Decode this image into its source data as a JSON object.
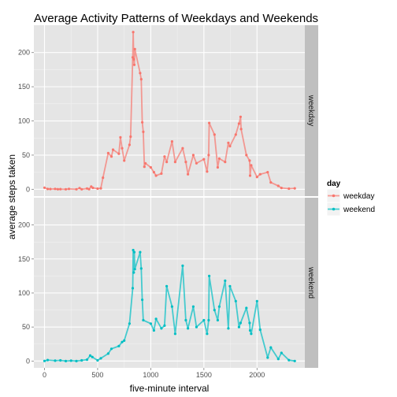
{
  "chart_data": {
    "type": "line",
    "title": "Average Activity Patterns of Weekdays and Weekends",
    "xlabel": "five-minute interval",
    "ylabel": "average steps taken",
    "xlim": [
      -100,
      2450
    ],
    "ylim": [
      -10,
      240
    ],
    "x_ticks": [
      0,
      500,
      1000,
      1500,
      2000
    ],
    "y_ticks": [
      0,
      50,
      100,
      150,
      200
    ],
    "grid": true,
    "legend_position": "right",
    "legend": {
      "title": "day",
      "entries": [
        {
          "name": "weekday",
          "color": "#f8766d"
        },
        {
          "name": "weekend",
          "color": "#00bfc4"
        }
      ]
    },
    "series": [
      {
        "name": "weekday",
        "panel": "weekday",
        "color": "#f8766d",
        "points": [
          [
            0,
            2.3
          ],
          [
            30,
            0.5
          ],
          [
            55,
            0.4
          ],
          [
            100,
            0.6
          ],
          [
            125,
            0.1
          ],
          [
            150,
            0.2
          ],
          [
            200,
            0
          ],
          [
            230,
            0.6
          ],
          [
            300,
            0
          ],
          [
            330,
            1.8
          ],
          [
            350,
            0
          ],
          [
            400,
            1.2
          ],
          [
            420,
            0.3
          ],
          [
            440,
            3.9
          ],
          [
            455,
            2.1
          ],
          [
            500,
            0.9
          ],
          [
            530,
            1.4
          ],
          [
            550,
            17
          ],
          [
            600,
            53
          ],
          [
            630,
            48
          ],
          [
            645,
            58
          ],
          [
            700,
            52
          ],
          [
            715,
            76
          ],
          [
            730,
            60
          ],
          [
            750,
            42
          ],
          [
            800,
            65
          ],
          [
            810,
            77
          ],
          [
            830,
            193
          ],
          [
            835,
            230
          ],
          [
            840,
            190
          ],
          [
            845,
            182
          ],
          [
            850,
            205
          ],
          [
            900,
            170
          ],
          [
            910,
            161
          ],
          [
            920,
            98
          ],
          [
            930,
            84
          ],
          [
            940,
            33
          ],
          [
            950,
            38
          ],
          [
            1000,
            32
          ],
          [
            1030,
            25
          ],
          [
            1050,
            20
          ],
          [
            1100,
            23
          ],
          [
            1130,
            48
          ],
          [
            1150,
            40
          ],
          [
            1200,
            70
          ],
          [
            1230,
            40
          ],
          [
            1300,
            60
          ],
          [
            1330,
            40
          ],
          [
            1350,
            22
          ],
          [
            1400,
            50
          ],
          [
            1430,
            38
          ],
          [
            1500,
            44
          ],
          [
            1530,
            26
          ],
          [
            1545,
            50
          ],
          [
            1550,
            97
          ],
          [
            1600,
            80
          ],
          [
            1630,
            32
          ],
          [
            1645,
            45
          ],
          [
            1700,
            40
          ],
          [
            1730,
            68
          ],
          [
            1745,
            63
          ],
          [
            1800,
            80
          ],
          [
            1830,
            96
          ],
          [
            1845,
            106
          ],
          [
            1850,
            88
          ],
          [
            1900,
            50
          ],
          [
            1930,
            42
          ],
          [
            1935,
            20
          ],
          [
            1945,
            35
          ],
          [
            2000,
            18
          ],
          [
            2030,
            22
          ],
          [
            2100,
            25
          ],
          [
            2130,
            10
          ],
          [
            2200,
            5
          ],
          [
            2230,
            2
          ],
          [
            2300,
            1
          ],
          [
            2355,
            1.4
          ]
        ]
      },
      {
        "name": "weekend",
        "panel": "weekend",
        "color": "#00bfc4",
        "points": [
          [
            0,
            0.2
          ],
          [
            30,
            1.5
          ],
          [
            100,
            0.5
          ],
          [
            150,
            1
          ],
          [
            200,
            0
          ],
          [
            250,
            0.5
          ],
          [
            300,
            0
          ],
          [
            350,
            1
          ],
          [
            400,
            2
          ],
          [
            430,
            8
          ],
          [
            450,
            6
          ],
          [
            500,
            1
          ],
          [
            530,
            4
          ],
          [
            600,
            11
          ],
          [
            630,
            18
          ],
          [
            700,
            22
          ],
          [
            730,
            28
          ],
          [
            750,
            30
          ],
          [
            800,
            55
          ],
          [
            830,
            107
          ],
          [
            835,
            163
          ],
          [
            840,
            130
          ],
          [
            845,
            160
          ],
          [
            850,
            135
          ],
          [
            900,
            160
          ],
          [
            910,
            136
          ],
          [
            920,
            90
          ],
          [
            930,
            60
          ],
          [
            1000,
            55
          ],
          [
            1030,
            45
          ],
          [
            1050,
            62
          ],
          [
            1100,
            48
          ],
          [
            1130,
            52
          ],
          [
            1150,
            110
          ],
          [
            1200,
            80
          ],
          [
            1230,
            40
          ],
          [
            1300,
            140
          ],
          [
            1330,
            60
          ],
          [
            1350,
            48
          ],
          [
            1400,
            80
          ],
          [
            1430,
            50
          ],
          [
            1500,
            60
          ],
          [
            1530,
            40
          ],
          [
            1545,
            60
          ],
          [
            1550,
            125
          ],
          [
            1600,
            75
          ],
          [
            1630,
            60
          ],
          [
            1645,
            80
          ],
          [
            1700,
            118
          ],
          [
            1730,
            48
          ],
          [
            1745,
            110
          ],
          [
            1800,
            88
          ],
          [
            1830,
            50
          ],
          [
            1845,
            56
          ],
          [
            1900,
            78
          ],
          [
            1930,
            56
          ],
          [
            1935,
            45
          ],
          [
            1945,
            40
          ],
          [
            2000,
            88
          ],
          [
            2030,
            46
          ],
          [
            2100,
            5
          ],
          [
            2130,
            20
          ],
          [
            2200,
            3
          ],
          [
            2230,
            12
          ],
          [
            2300,
            1.4
          ],
          [
            2355,
            0.1
          ]
        ]
      }
    ]
  }
}
